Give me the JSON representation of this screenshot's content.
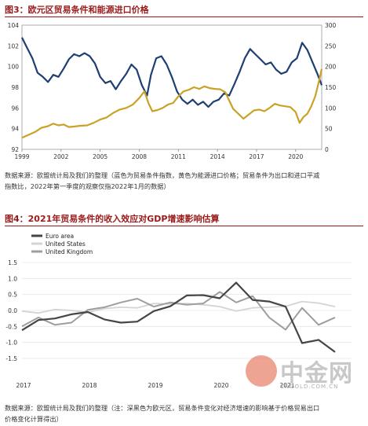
{
  "chart_data": [
    {
      "type": "line",
      "title_prefix": "图3：",
      "title": "欧元区贸易条件和能源进口价格",
      "x_ticks": [
        "1999",
        "2002",
        "2005",
        "2008",
        "2011",
        "2014",
        "2017",
        "2020"
      ],
      "x_range": [
        1999,
        2022
      ],
      "y_left_ticks": [
        "92",
        "94",
        "96",
        "98",
        "100",
        "102",
        "104"
      ],
      "y_left_range": [
        92,
        104
      ],
      "y_right_ticks": [
        "0",
        "50",
        "100",
        "150",
        "200",
        "250",
        "300"
      ],
      "y_right_range": [
        0,
        300
      ],
      "grid": false,
      "series": [
        {
          "axis": "left",
          "color": "#1f3f73",
          "points": [
            [
              1999.0,
              102.8
            ],
            [
              1999.4,
              101.8
            ],
            [
              1999.8,
              100.8
            ],
            [
              2000.2,
              99.4
            ],
            [
              2000.6,
              99.0
            ],
            [
              2001.0,
              98.5
            ],
            [
              2001.4,
              99.2
            ],
            [
              2001.8,
              99.0
            ],
            [
              2002.2,
              99.8
            ],
            [
              2002.6,
              100.7
            ],
            [
              2003.0,
              101.2
            ],
            [
              2003.4,
              101.0
            ],
            [
              2003.8,
              101.3
            ],
            [
              2004.2,
              101.0
            ],
            [
              2004.6,
              100.3
            ],
            [
              2005.0,
              99.0
            ],
            [
              2005.4,
              98.4
            ],
            [
              2005.8,
              98.6
            ],
            [
              2006.2,
              97.8
            ],
            [
              2006.6,
              98.6
            ],
            [
              2007.0,
              99.3
            ],
            [
              2007.4,
              100.2
            ],
            [
              2007.8,
              99.7
            ],
            [
              2008.2,
              98.2
            ],
            [
              2008.6,
              97.2
            ],
            [
              2008.9,
              99.2
            ],
            [
              2009.3,
              100.8
            ],
            [
              2009.7,
              101.0
            ],
            [
              2010.1,
              100.2
            ],
            [
              2010.5,
              99.0
            ],
            [
              2010.9,
              97.6
            ],
            [
              2011.3,
              96.8
            ],
            [
              2011.7,
              96.4
            ],
            [
              2012.1,
              96.8
            ],
            [
              2012.5,
              96.3
            ],
            [
              2012.9,
              96.6
            ],
            [
              2013.3,
              96.1
            ],
            [
              2013.7,
              96.6
            ],
            [
              2014.1,
              96.8
            ],
            [
              2014.5,
              97.4
            ],
            [
              2014.9,
              97.2
            ],
            [
              2015.3,
              98.3
            ],
            [
              2015.7,
              99.5
            ],
            [
              2016.1,
              100.8
            ],
            [
              2016.5,
              101.7
            ],
            [
              2016.9,
              101.2
            ],
            [
              2017.3,
              100.7
            ],
            [
              2017.7,
              100.2
            ],
            [
              2018.1,
              100.4
            ],
            [
              2018.5,
              99.7
            ],
            [
              2018.9,
              99.3
            ],
            [
              2019.3,
              99.5
            ],
            [
              2019.7,
              100.4
            ],
            [
              2020.1,
              100.8
            ],
            [
              2020.5,
              102.3
            ],
            [
              2020.9,
              101.6
            ],
            [
              2021.3,
              100.4
            ],
            [
              2021.7,
              99.2
            ],
            [
              2022.0,
              98.2
            ]
          ]
        },
        {
          "axis": "right",
          "color": "#c9a227",
          "points": [
            [
              1999.0,
              28
            ],
            [
              1999.5,
              35
            ],
            [
              2000.0,
              42
            ],
            [
              2000.5,
              52
            ],
            [
              2001.0,
              56
            ],
            [
              2001.4,
              62
            ],
            [
              2001.8,
              58
            ],
            [
              2002.2,
              60
            ],
            [
              2002.6,
              54
            ],
            [
              2003.0,
              55
            ],
            [
              2003.5,
              57
            ],
            [
              2004.0,
              58
            ],
            [
              2004.5,
              64
            ],
            [
              2005.0,
              72
            ],
            [
              2005.5,
              77
            ],
            [
              2006.0,
              88
            ],
            [
              2006.5,
              96
            ],
            [
              2007.0,
              100
            ],
            [
              2007.5,
              108
            ],
            [
              2008.0,
              124
            ],
            [
              2008.4,
              140
            ],
            [
              2008.7,
              112
            ],
            [
              2009.0,
              92
            ],
            [
              2009.4,
              95
            ],
            [
              2009.8,
              100
            ],
            [
              2010.2,
              108
            ],
            [
              2010.6,
              112
            ],
            [
              2011.0,
              128
            ],
            [
              2011.4,
              140
            ],
            [
              2011.8,
              144
            ],
            [
              2012.2,
              150
            ],
            [
              2012.6,
              146
            ],
            [
              2013.0,
              152
            ],
            [
              2013.4,
              148
            ],
            [
              2013.8,
              146
            ],
            [
              2014.2,
              145
            ],
            [
              2014.6,
              138
            ],
            [
              2014.9,
              118
            ],
            [
              2015.2,
              98
            ],
            [
              2015.6,
              86
            ],
            [
              2016.0,
              74
            ],
            [
              2016.4,
              84
            ],
            [
              2016.8,
              94
            ],
            [
              2017.2,
              96
            ],
            [
              2017.6,
              92
            ],
            [
              2018.0,
              100
            ],
            [
              2018.4,
              110
            ],
            [
              2018.8,
              106
            ],
            [
              2019.2,
              104
            ],
            [
              2019.6,
              102
            ],
            [
              2020.0,
              90
            ],
            [
              2020.3,
              64
            ],
            [
              2020.6,
              78
            ],
            [
              2020.9,
              86
            ],
            [
              2021.2,
              104
            ],
            [
              2021.5,
              128
            ],
            [
              2021.8,
              166
            ],
            [
              2022.0,
              194
            ]
          ]
        }
      ],
      "note_lines": [
        "数据来源：欧盟统计局及我们的整理（蓝色为贸易条件指数，黄色为能源进口价格；贸易条件为出口和进口平减",
        "指数比，2022年第一季度的观察仅指2022年1月的数据）"
      ]
    },
    {
      "type": "line",
      "title_prefix": "图4：",
      "title": "2021年贸易条件的收入效应对GDP增速影响估算",
      "x_ticks": [
        "2017",
        "2018",
        "2019",
        "2020",
        "2021"
      ],
      "x_range": [
        2017,
        2022
      ],
      "y_ticks": [
        "1.5",
        "1.0",
        "0.5",
        "0.0",
        "-0.5",
        "-1.0",
        "-1.5"
      ],
      "y_range": [
        -1.5,
        1.5
      ],
      "grid": true,
      "legend": [
        "Euro area",
        "United States",
        "United Kingdom"
      ],
      "legend_placement": "top-left",
      "series": [
        {
          "name": "Euro area",
          "color": "#454545",
          "width": 2.2,
          "values": [
            [
              2017.0,
              -0.62
            ],
            [
              2017.25,
              -0.3
            ],
            [
              2017.5,
              -0.25
            ],
            [
              2017.75,
              -0.12
            ],
            [
              2018.0,
              -0.05
            ],
            [
              2018.25,
              -0.28
            ],
            [
              2018.5,
              -0.38
            ],
            [
              2018.75,
              -0.35
            ],
            [
              2019.0,
              -0.02
            ],
            [
              2019.25,
              0.13
            ],
            [
              2019.5,
              0.47
            ],
            [
              2019.75,
              0.48
            ],
            [
              2020.0,
              0.38
            ],
            [
              2020.25,
              0.87
            ],
            [
              2020.5,
              0.33
            ],
            [
              2020.75,
              0.28
            ],
            [
              2021.0,
              0.12
            ],
            [
              2021.25,
              -1.02
            ],
            [
              2021.5,
              -0.92
            ],
            [
              2021.75,
              -1.3
            ]
          ]
        },
        {
          "name": "United States",
          "color": "#d4d4d4",
          "width": 1.8,
          "values": [
            [
              2017.0,
              -0.02
            ],
            [
              2017.25,
              -0.08
            ],
            [
              2017.5,
              0.03
            ],
            [
              2017.75,
              0.0
            ],
            [
              2018.0,
              -0.06
            ],
            [
              2018.25,
              0.06
            ],
            [
              2018.5,
              0.1
            ],
            [
              2018.75,
              0.08
            ],
            [
              2019.0,
              0.22
            ],
            [
              2019.25,
              0.2
            ],
            [
              2019.5,
              0.22
            ],
            [
              2019.75,
              0.18
            ],
            [
              2020.0,
              0.12
            ],
            [
              2020.25,
              -0.02
            ],
            [
              2020.5,
              0.08
            ],
            [
              2020.75,
              0.1
            ],
            [
              2021.0,
              0.13
            ],
            [
              2021.25,
              0.28
            ],
            [
              2021.5,
              0.23
            ],
            [
              2021.75,
              0.12
            ]
          ]
        },
        {
          "name": "United Kingdom",
          "color": "#9e9e9e",
          "width": 2.0,
          "values": [
            [
              2017.0,
              -0.5
            ],
            [
              2017.25,
              -0.22
            ],
            [
              2017.5,
              -0.45
            ],
            [
              2017.75,
              -0.38
            ],
            [
              2018.0,
              0.02
            ],
            [
              2018.25,
              0.1
            ],
            [
              2018.5,
              0.25
            ],
            [
              2018.75,
              0.37
            ],
            [
              2019.0,
              0.12
            ],
            [
              2019.25,
              0.25
            ],
            [
              2019.5,
              0.18
            ],
            [
              2019.75,
              0.22
            ],
            [
              2020.0,
              0.58
            ],
            [
              2020.25,
              0.25
            ],
            [
              2020.5,
              0.45
            ],
            [
              2020.75,
              -0.22
            ],
            [
              2021.0,
              -0.6
            ],
            [
              2021.25,
              0.08
            ],
            [
              2021.5,
              -0.45
            ],
            [
              2021.75,
              -0.22
            ]
          ]
        }
      ],
      "note_lines": [
        "数据来源：欧盟统计局及我们的整理（注：深黑色为欧元区，贸易条件变化对经济增速的影响基于价格贸易出口",
        "价格变化计算得出）"
      ]
    }
  ],
  "watermark": {
    "logo_text": "中金网",
    "site_text": "CNGOLD.COM.CN"
  }
}
